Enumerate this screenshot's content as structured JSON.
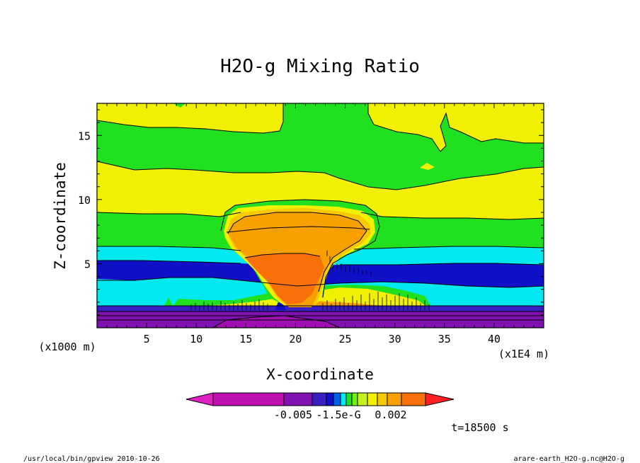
{
  "chart_data": {
    "type": "contour",
    "title": "H2O-g Mixing Ratio",
    "xlabel": "X-coordinate",
    "ylabel": "Z-coordinate",
    "x_units": "(x1E4 m)",
    "y_units": "(x1000 m)",
    "xlim": [
      0,
      45
    ],
    "ylim": [
      0,
      17.5
    ],
    "x_ticks": [
      5,
      10,
      15,
      20,
      25,
      30,
      35,
      40
    ],
    "y_ticks": [
      5,
      10,
      15
    ],
    "colorbar": {
      "labels": [
        "-0.005",
        "-1.5e-G",
        "0.002"
      ],
      "colors": [
        "#e020c0",
        "#c010b0",
        "#8010b0",
        "#3820c0",
        "#1010c8",
        "#0060e8",
        "#00e8f0",
        "#20e020",
        "#70ee18",
        "#c8f020",
        "#f0f000",
        "#f8c800",
        "#f8a000",
        "#f87008",
        "#ff2020"
      ]
    },
    "time_label": "t=18500 s",
    "footer_left": "/usr/local/bin/gpview  2010-10-26",
    "footer_right": "arare-earth_H2O-g.nc@H2O-g",
    "levels": [
      {
        "name": "purple-surface",
        "color": "#8010b0",
        "z_top": 1.3
      },
      {
        "name": "dark-blue-surface",
        "color": "#3820c0",
        "z_top": 1.6
      },
      {
        "name": "cyan-lower",
        "color": "#00e8f0",
        "z_top": 3.9
      },
      {
        "name": "blue-band",
        "color": "#1010c8",
        "z_top": 6.0
      },
      {
        "name": "cyan-upper",
        "color": "#00e8f0",
        "z_top": 6.2
      },
      {
        "name": "green-lower",
        "color": "#20e020",
        "z_top": 8.6
      },
      {
        "name": "yellow-mid",
        "color": "#f0f000",
        "z_top": 10.2
      },
      {
        "name": "green-upper",
        "color": "#20e020",
        "z_top": 16.3
      },
      {
        "name": "yellow-top",
        "color": "#f0f000",
        "z_top": 17.5
      }
    ],
    "plume": {
      "center_x": 20,
      "top_z": 9.8,
      "anvil_x_range": [
        13,
        27
      ],
      "orange_core_z_range": [
        4.0,
        7.2
      ]
    }
  }
}
